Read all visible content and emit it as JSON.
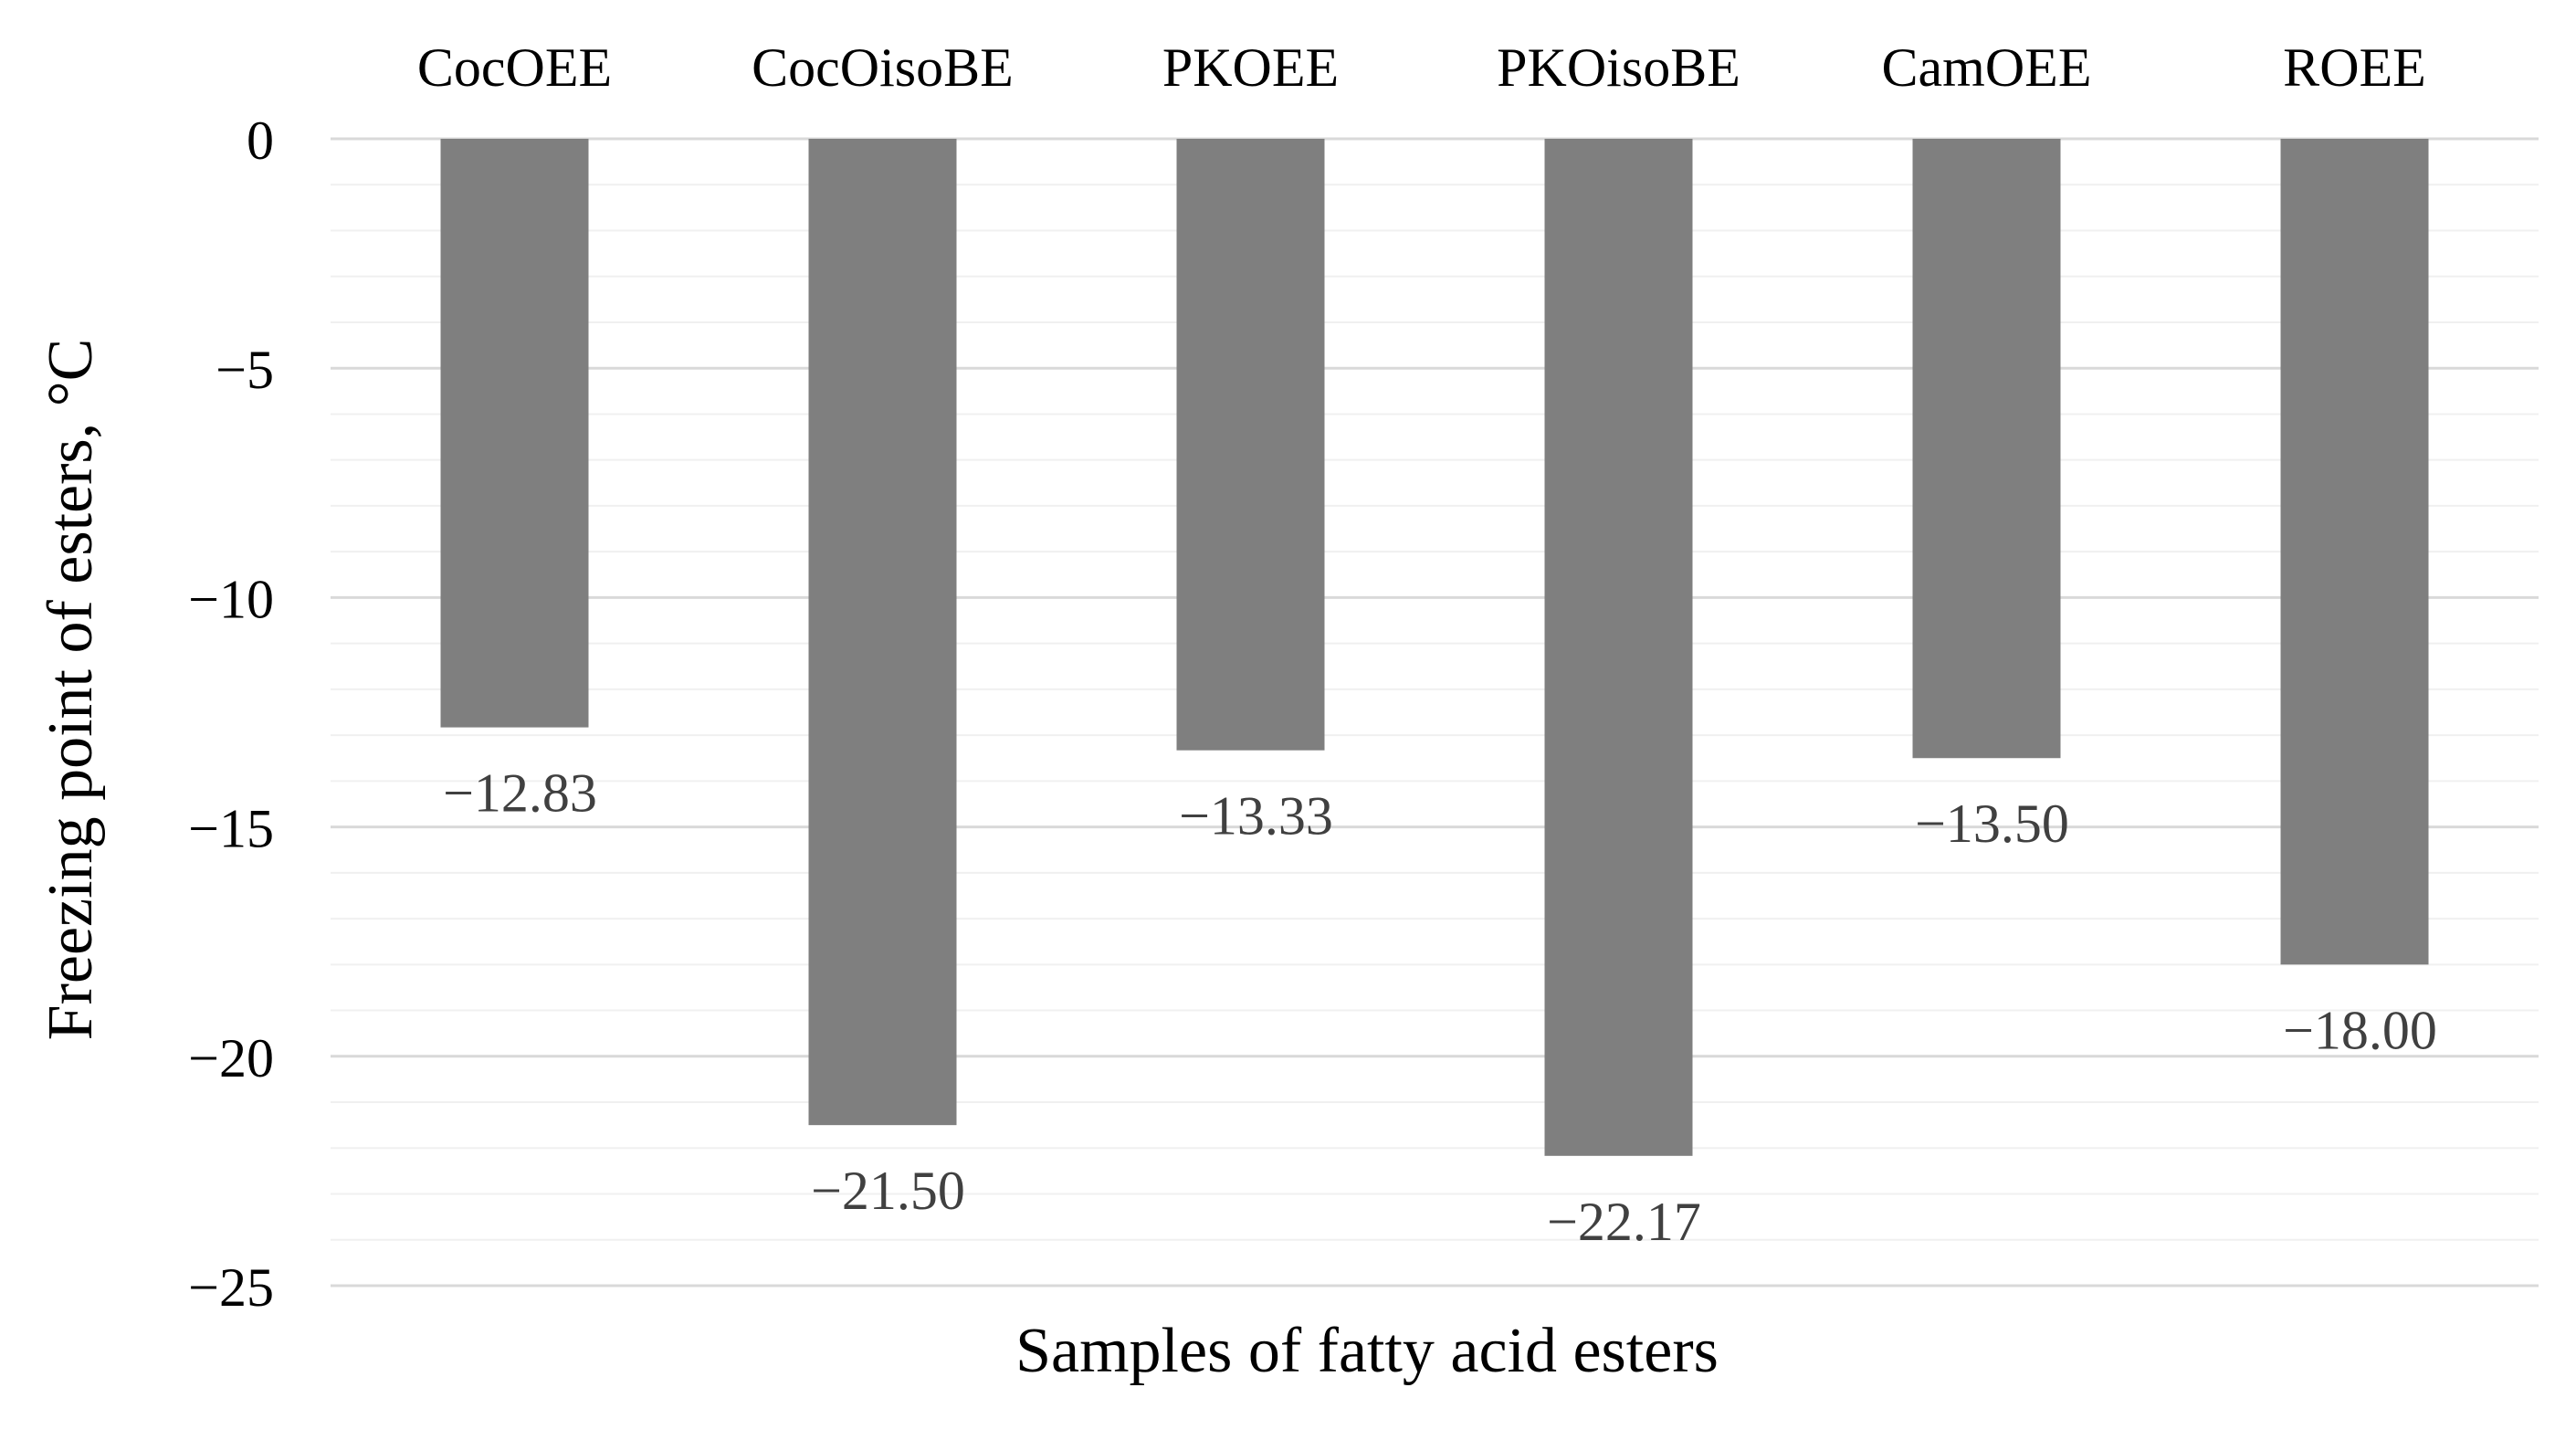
{
  "chart_data": {
    "type": "bar",
    "title": "",
    "xlabel": "Samples of fatty acid esters",
    "ylabel": "Freezing point of esters, °C",
    "categories": [
      "CocOEE",
      "CocOisoBE",
      "PKOEE",
      "PKOisoBE",
      "CamOEE",
      "ROEE"
    ],
    "values": [
      -12.83,
      -21.5,
      -13.33,
      -22.17,
      -13.5,
      -18.0
    ],
    "data_labels": [
      "−12.83",
      "−21.50",
      "−13.33",
      "−22.17",
      "−13.50",
      "−18.00"
    ],
    "ylim": [
      -25,
      0
    ],
    "y_ticks": [
      0,
      -5,
      -10,
      -15,
      -20,
      -25
    ],
    "y_tick_labels": [
      "0",
      "−5",
      "−10",
      "−15",
      "−20",
      "−25"
    ],
    "minor_tick_step": 1,
    "category_axis_position": "top",
    "grid": true,
    "legend": "none",
    "colors": {
      "bar": "#7f7f7f",
      "major_grid": "#d9d9d9",
      "minor_grid": "#f0f0f0",
      "text": "#000000",
      "data_label": "#404040"
    }
  }
}
